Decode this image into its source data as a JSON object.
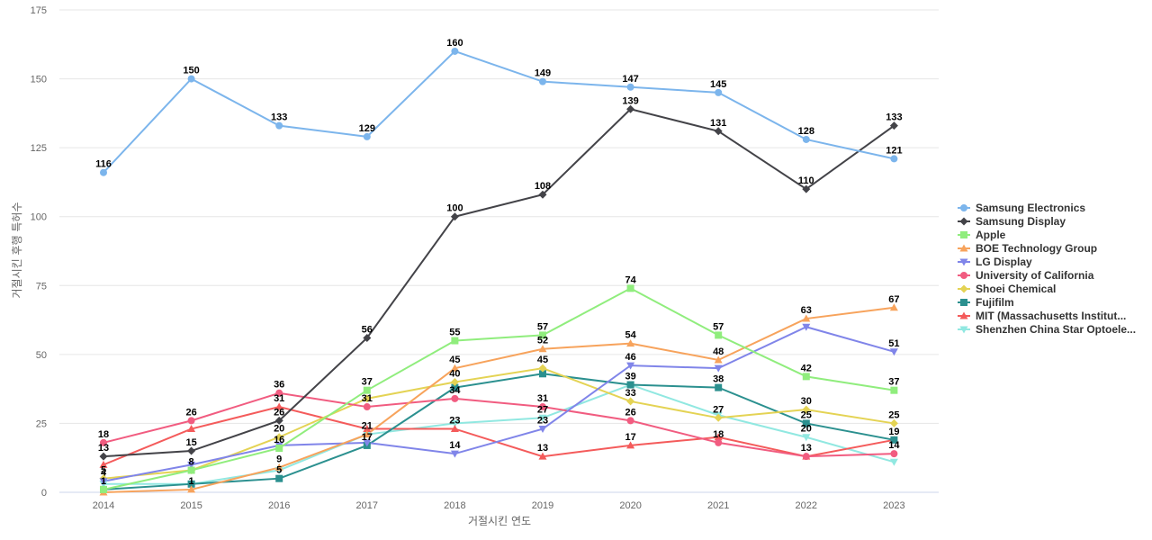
{
  "chart_data": {
    "type": "line",
    "title": "",
    "xlabel": "거절시킨 연도",
    "ylabel": "거절시킨 후행 특허수",
    "x": [
      "2014",
      "2015",
      "2016",
      "2017",
      "2018",
      "2019",
      "2020",
      "2021",
      "2022",
      "2023"
    ],
    "ylim": [
      0,
      175
    ],
    "yticks": [
      "0",
      "25",
      "50",
      "75",
      "100",
      "125",
      "150",
      "175"
    ],
    "grid": true,
    "legend_position": "right",
    "series": [
      {
        "name": "Samsung Electronics",
        "color": "#7cb5ec",
        "marker": "circle",
        "values": [
          116,
          150,
          133,
          129,
          160,
          149,
          147,
          145,
          128,
          121
        ]
      },
      {
        "name": "Samsung Display",
        "color": "#434348",
        "marker": "diamond",
        "values": [
          13,
          15,
          26,
          56,
          100,
          108,
          139,
          131,
          110,
          133
        ]
      },
      {
        "name": "Apple",
        "color": "#90ed7d",
        "marker": "square",
        "values": [
          1,
          8,
          16,
          37,
          55,
          57,
          74,
          57,
          42,
          37
        ]
      },
      {
        "name": "BOE Technology Group",
        "color": "#f7a35c",
        "marker": "triangle",
        "values": [
          0,
          1,
          9,
          21,
          45,
          52,
          54,
          48,
          63,
          67
        ]
      },
      {
        "name": "LG Display",
        "color": "#8085e9",
        "marker": "triangle-down",
        "values": [
          4,
          10,
          17,
          18,
          14,
          23,
          46,
          45,
          60,
          51
        ]
      },
      {
        "name": "University of California",
        "color": "#f15c80",
        "marker": "circle",
        "values": [
          18,
          26,
          36,
          31,
          34,
          31,
          26,
          18,
          13,
          14
        ]
      },
      {
        "name": "Shoei Chemical",
        "color": "#e4d354",
        "marker": "diamond",
        "values": [
          5,
          8,
          20,
          34,
          40,
          45,
          33,
          27,
          30,
          25
        ]
      },
      {
        "name": "Fujifilm",
        "color": "#2b908f",
        "marker": "square",
        "values": [
          1,
          3,
          5,
          17,
          38,
          43,
          39,
          38,
          25,
          19
        ]
      },
      {
        "name": "MIT (Massachusetts Institut...",
        "color": "#f45b5b",
        "marker": "triangle",
        "values": [
          10,
          23,
          31,
          23,
          23,
          13,
          17,
          20,
          13,
          19
        ]
      },
      {
        "name": "Shenzhen China Star Optoele...",
        "color": "#91e8e1",
        "marker": "triangle-down",
        "values": [
          3,
          3,
          8,
          21,
          25,
          27,
          39,
          28,
          20,
          11
        ]
      }
    ],
    "point_labels": [
      {
        "x": "2014",
        "text": "116",
        "ref": 116
      },
      {
        "x": "2015",
        "text": "150",
        "ref": 150
      },
      {
        "x": "2016",
        "text": "133",
        "ref": 133
      },
      {
        "x": "2017",
        "text": "129",
        "ref": 129
      },
      {
        "x": "2018",
        "text": "160",
        "ref": 160
      },
      {
        "x": "2019",
        "text": "149",
        "ref": 149
      },
      {
        "x": "2020",
        "text": "147",
        "ref": 147
      },
      {
        "x": "2021",
        "text": "145",
        "ref": 145
      },
      {
        "x": "2022",
        "text": "128",
        "ref": 128
      },
      {
        "x": "2023",
        "text": "121",
        "ref": 121
      },
      {
        "x": "2020",
        "text": "139",
        "ref": 139
      },
      {
        "x": "2021",
        "text": "131",
        "ref": 131
      },
      {
        "x": "2022",
        "text": "110",
        "ref": 110
      },
      {
        "x": "2023",
        "text": "133",
        "ref": 133
      },
      {
        "x": "2018",
        "text": "100",
        "ref": 100
      },
      {
        "x": "2019",
        "text": "108",
        "ref": 108
      },
      {
        "x": "2017",
        "text": "56",
        "ref": 56
      },
      {
        "x": "2020",
        "text": "74",
        "ref": 74
      },
      {
        "x": "2022",
        "text": "63",
        "ref": 63
      },
      {
        "x": "2023",
        "text": "67",
        "ref": 67
      },
      {
        "x": "2021",
        "text": "57",
        "ref": 57
      },
      {
        "x": "2018",
        "text": "55",
        "ref": 55
      },
      {
        "x": "2019",
        "text": "57",
        "ref": 57
      },
      {
        "x": "2019",
        "text": "52",
        "ref": 52
      },
      {
        "x": "2020",
        "text": "54",
        "ref": 54
      },
      {
        "x": "2023",
        "text": "51",
        "ref": 51
      },
      {
        "x": "2021",
        "text": "48",
        "ref": 48
      },
      {
        "x": "2020",
        "text": "46",
        "ref": 46
      },
      {
        "x": "2018",
        "text": "45",
        "ref": 45
      },
      {
        "x": "2019",
        "text": "45",
        "ref": 45
      },
      {
        "x": "2022",
        "text": "42",
        "ref": 42
      },
      {
        "x": "2018",
        "text": "40",
        "ref": 40
      },
      {
        "x": "2020",
        "text": "39",
        "ref": 39
      },
      {
        "x": "2017",
        "text": "37",
        "ref": 37
      },
      {
        "x": "2021",
        "text": "38",
        "ref": 38
      },
      {
        "x": "2023",
        "text": "37",
        "ref": 37
      },
      {
        "x": "2016",
        "text": "36",
        "ref": 36
      },
      {
        "x": "2018",
        "text": "34",
        "ref": 34
      },
      {
        "x": "2020",
        "text": "33",
        "ref": 33
      },
      {
        "x": "2016",
        "text": "31",
        "ref": 31
      },
      {
        "x": "2017",
        "text": "31",
        "ref": 31
      },
      {
        "x": "2019",
        "text": "31",
        "ref": 31
      },
      {
        "x": "2022",
        "text": "30",
        "ref": 30
      },
      {
        "x": "2015",
        "text": "26",
        "ref": 26
      },
      {
        "x": "2016",
        "text": "26",
        "ref": 26
      },
      {
        "x": "2020",
        "text": "26",
        "ref": 26
      },
      {
        "x": "2019",
        "text": "27",
        "ref": 27
      },
      {
        "x": "2021",
        "text": "27",
        "ref": 27
      },
      {
        "x": "2022",
        "text": "25",
        "ref": 25
      },
      {
        "x": "2023",
        "text": "25",
        "ref": 25
      },
      {
        "x": "2018",
        "text": "23",
        "ref": 23
      },
      {
        "x": "2019",
        "text": "23",
        "ref": 23
      },
      {
        "x": "2017",
        "text": "21",
        "ref": 21
      },
      {
        "x": "2016",
        "text": "20",
        "ref": 20
      },
      {
        "x": "2022",
        "text": "20",
        "ref": 20
      },
      {
        "x": "2023",
        "text": "19",
        "ref": 19
      },
      {
        "x": "2014",
        "text": "18",
        "ref": 18
      },
      {
        "x": "2021",
        "text": "18",
        "ref": 18
      },
      {
        "x": "2017",
        "text": "17",
        "ref": 17
      },
      {
        "x": "2020",
        "text": "17",
        "ref": 17
      },
      {
        "x": "2016",
        "text": "16",
        "ref": 16
      },
      {
        "x": "2015",
        "text": "15",
        "ref": 15
      },
      {
        "x": "2018",
        "text": "14",
        "ref": 14
      },
      {
        "x": "2023",
        "text": "14",
        "ref": 14
      },
      {
        "x": "2014",
        "text": "13",
        "ref": 13
      },
      {
        "x": "2019",
        "text": "13",
        "ref": 13
      },
      {
        "x": "2022",
        "text": "13",
        "ref": 13
      },
      {
        "x": "2016",
        "text": "9",
        "ref": 9
      },
      {
        "x": "2015",
        "text": "8",
        "ref": 8
      },
      {
        "x": "2014",
        "text": "5",
        "ref": 5
      },
      {
        "x": "2016",
        "text": "5",
        "ref": 5
      },
      {
        "x": "2014",
        "text": "4",
        "ref": 4
      },
      {
        "x": "2015",
        "text": "1",
        "ref": 1
      },
      {
        "x": "2014",
        "text": "1",
        "ref": 1
      }
    ]
  }
}
